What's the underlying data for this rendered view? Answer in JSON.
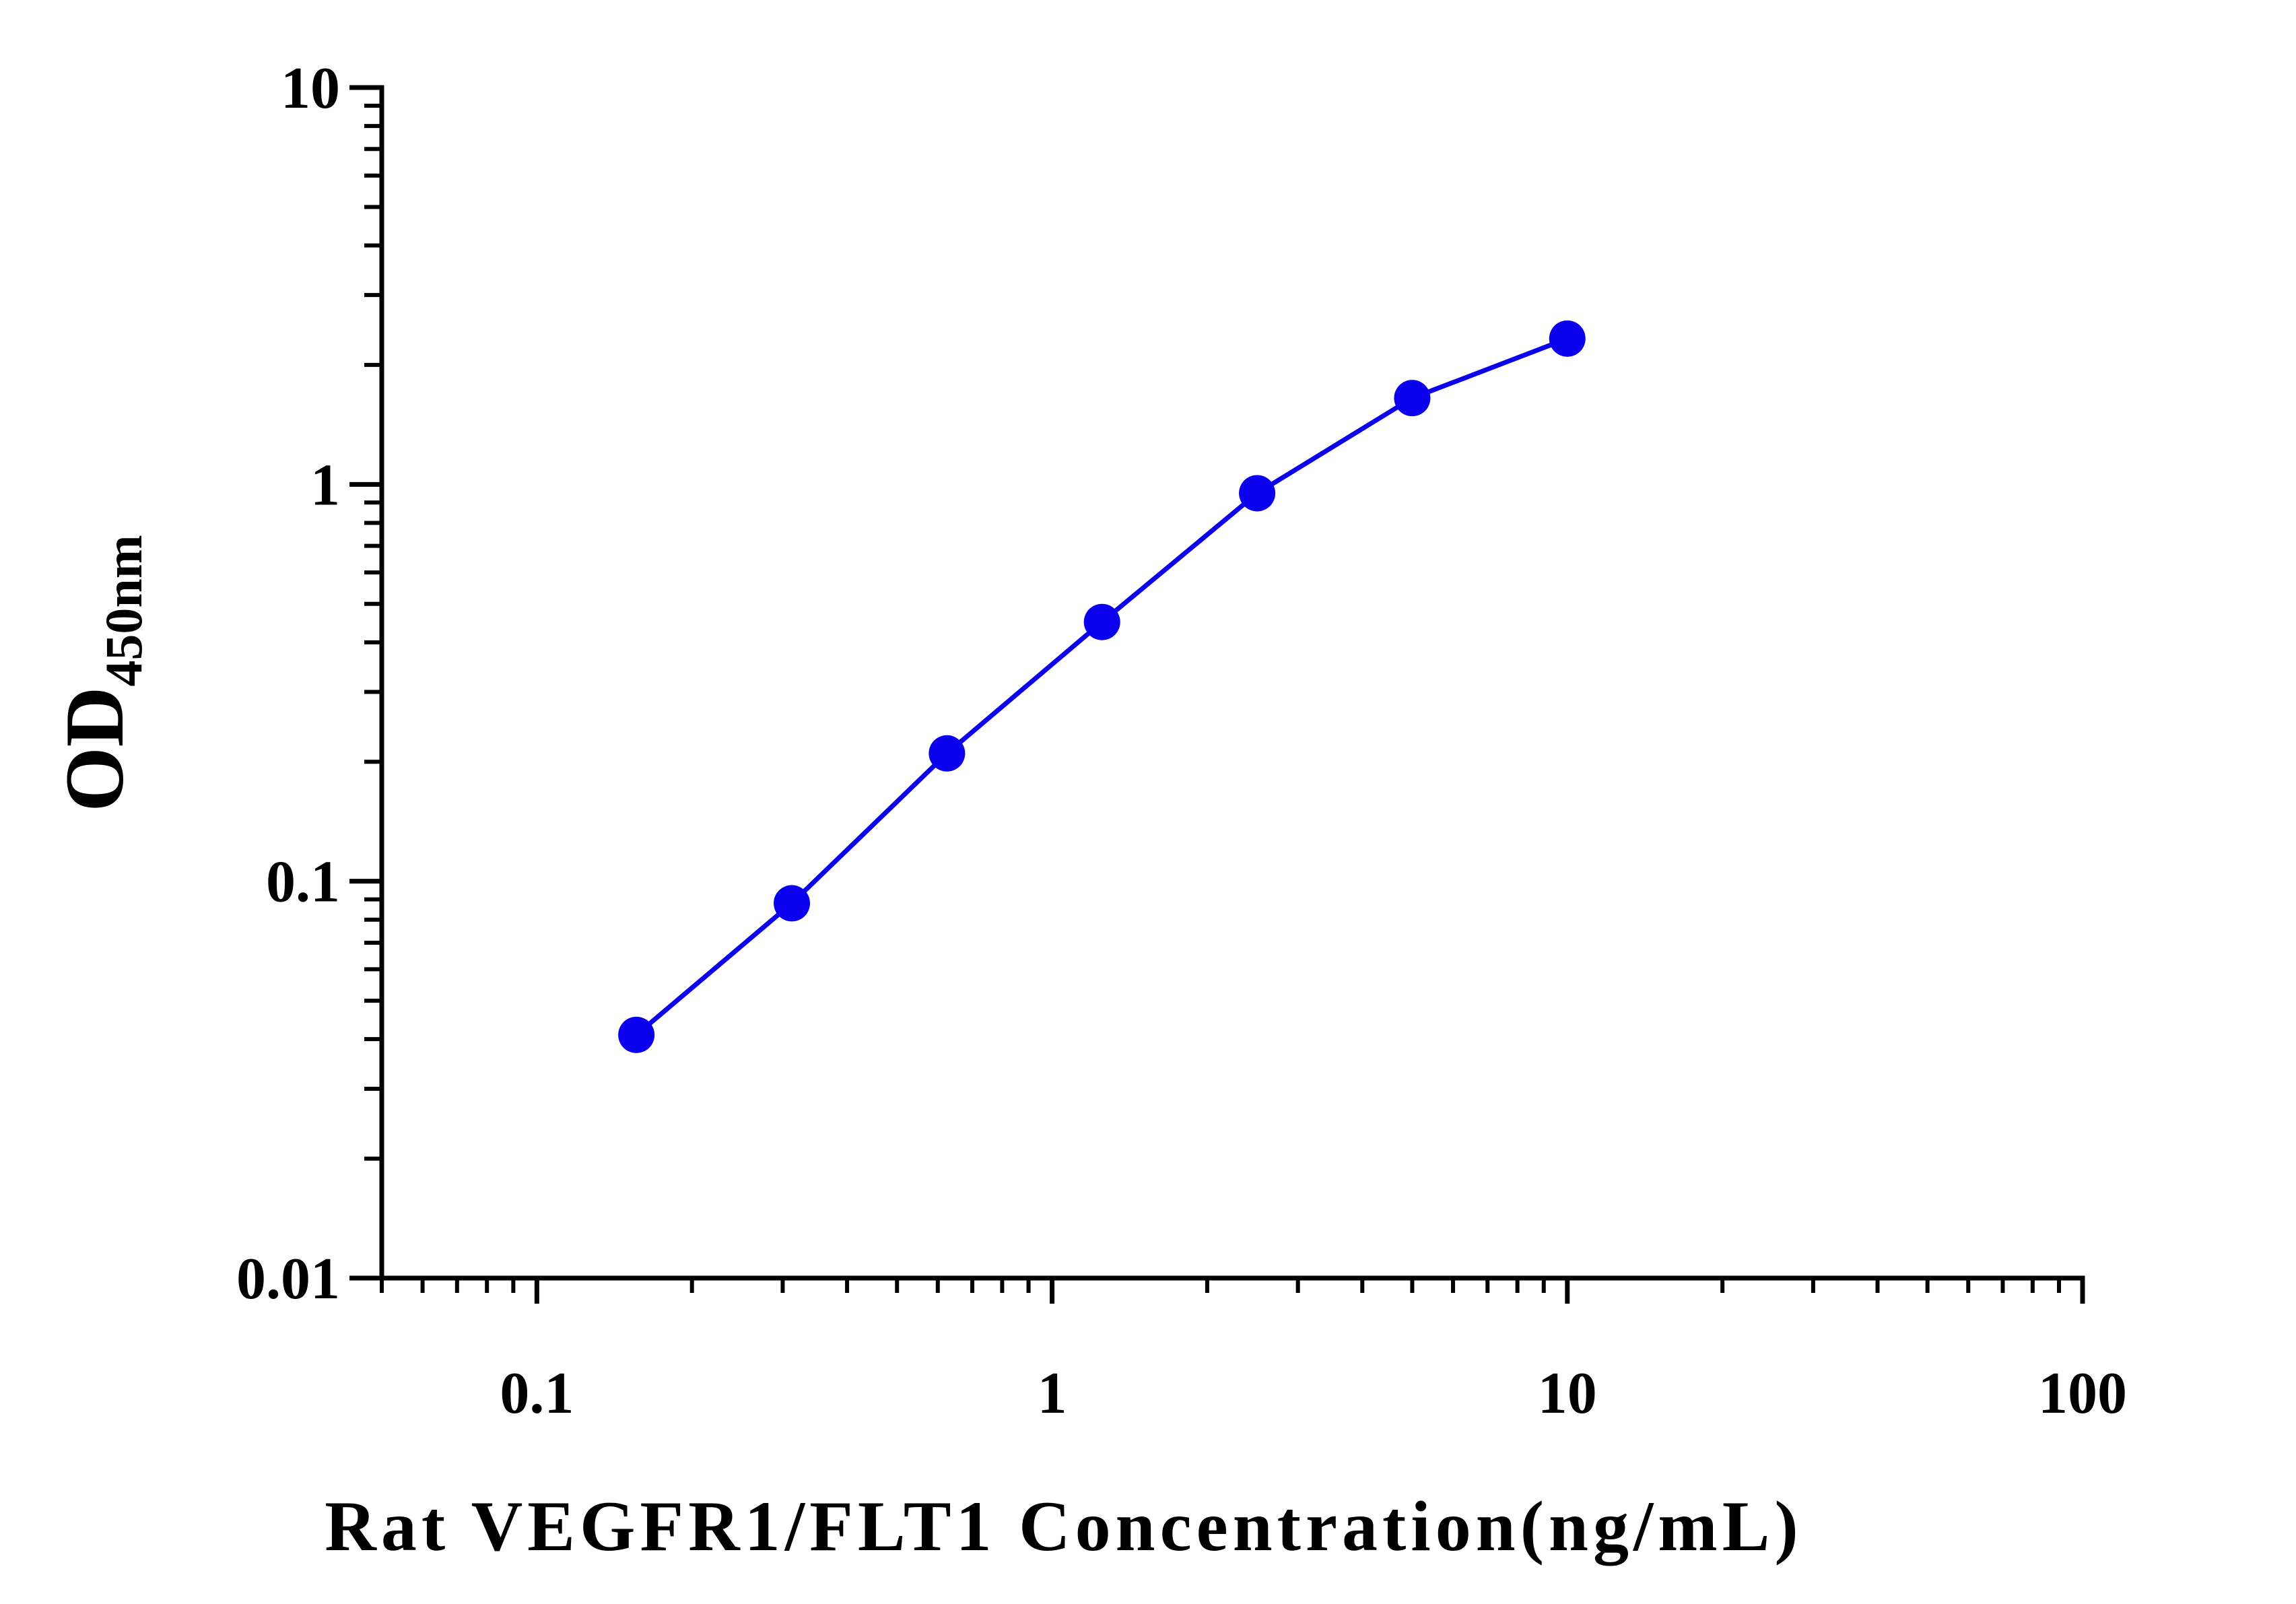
{
  "chart_data": {
    "type": "line",
    "title": "",
    "xlabel": "Rat VEGFR1/FLT1 Concentration(ng/mL)",
    "ylabel": "OD",
    "ylabel_subscript": "450nm",
    "x_scale": "log",
    "y_scale": "log",
    "xlim": [
      0.05,
      100
    ],
    "ylim": [
      0.01,
      10
    ],
    "x_tick_labels": [
      "0.1",
      "1",
      "10",
      "100"
    ],
    "y_tick_labels": [
      "0.01",
      "0.1",
      "1",
      "10"
    ],
    "grid": false,
    "legend": "none",
    "series": [
      {
        "color": "#0a00ee",
        "x": [
          0.156,
          0.3125,
          0.625,
          1.25,
          2.5,
          5,
          10
        ],
        "y": [
          0.041,
          0.088,
          0.21,
          0.45,
          0.95,
          1.65,
          2.33
        ]
      }
    ]
  }
}
